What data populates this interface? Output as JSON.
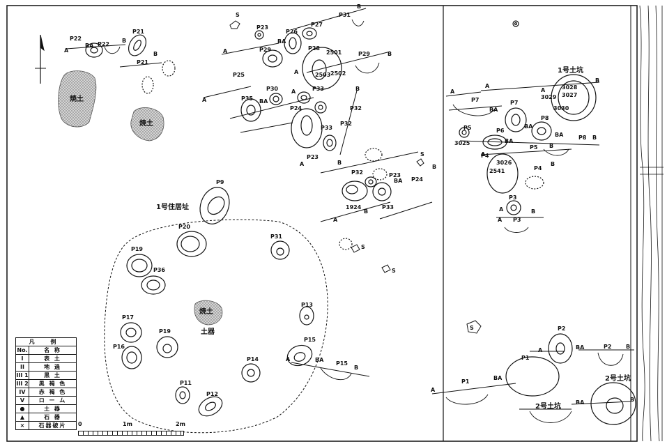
{
  "features": {
    "dwelling_1": "1号住居址",
    "pit_1": "1号土坑",
    "pit_2": "2号土坑",
    "burnt_soil": "焼土",
    "earthenware": "土器",
    "stone": "S"
  },
  "section_labels": {
    "a": "A",
    "b": "B",
    "ba": "BA"
  },
  "post_holes": [
    {
      "id": "p22",
      "label": "P22"
    },
    {
      "id": "p21",
      "label": "P21"
    },
    {
      "id": "p23",
      "label": "P23"
    },
    {
      "id": "p31",
      "label": "P31"
    },
    {
      "id": "p26",
      "label": "P26"
    },
    {
      "id": "p27",
      "label": "P27"
    },
    {
      "id": "p28",
      "label": "P28"
    },
    {
      "id": "p29",
      "label": "P29"
    },
    {
      "id": "p25",
      "label": "P25"
    },
    {
      "id": "p30",
      "label": "P30"
    },
    {
      "id": "p35",
      "label": "P35"
    },
    {
      "id": "p24",
      "label": "P24"
    },
    {
      "id": "p33",
      "label": "P33"
    },
    {
      "id": "p32",
      "label": "P32"
    },
    {
      "id": "p9",
      "label": "P9"
    },
    {
      "id": "p20",
      "label": "P20"
    },
    {
      "id": "p19",
      "label": "P19"
    },
    {
      "id": "p36",
      "label": "P36"
    },
    {
      "id": "p17",
      "label": "P17"
    },
    {
      "id": "p18",
      "label": "P18"
    },
    {
      "id": "p16",
      "label": "P16"
    },
    {
      "id": "p14",
      "label": "P14"
    },
    {
      "id": "p13",
      "label": "P13"
    },
    {
      "id": "p15",
      "label": "P15"
    },
    {
      "id": "p11",
      "label": "P11"
    },
    {
      "id": "p12",
      "label": "P12"
    },
    {
      "id": "p7",
      "label": "P7"
    },
    {
      "id": "p6",
      "label": "P6"
    },
    {
      "id": "p5",
      "label": "P5"
    },
    {
      "id": "p8",
      "label": "P8"
    },
    {
      "id": "p4",
      "label": "P4"
    },
    {
      "id": "p3",
      "label": "P3"
    },
    {
      "id": "p2",
      "label": "P2"
    },
    {
      "id": "p1",
      "label": "P1"
    }
  ],
  "find_numbers": [
    "2501",
    "2503",
    "2502",
    "1924",
    "3029",
    "3028",
    "3027",
    "3030",
    "3025",
    "3026",
    "2541"
  ],
  "legend": {
    "title": "凡 例",
    "header": {
      "no": "No.",
      "name": "名 称"
    },
    "rows": [
      {
        "no": "I",
        "name": "表 土"
      },
      {
        "no": "II",
        "name": "地 過"
      },
      {
        "no": "III 1",
        "name": "黒 土"
      },
      {
        "no": "III 2",
        "name": "黒 褐 色"
      },
      {
        "no": "IV",
        "name": "赤 褐 色"
      },
      {
        "no": "V",
        "name": "ロ ー ム"
      },
      {
        "no": "●",
        "name": "土 器"
      },
      {
        "no": "▲",
        "name": "石 器"
      },
      {
        "no": "×",
        "name": "石器破片"
      }
    ]
  },
  "scale": {
    "zero": "0",
    "one": "1m",
    "two": "2m"
  },
  "colors": {
    "ink": "#111111",
    "burnt_fill": "#c8c8c8"
  }
}
